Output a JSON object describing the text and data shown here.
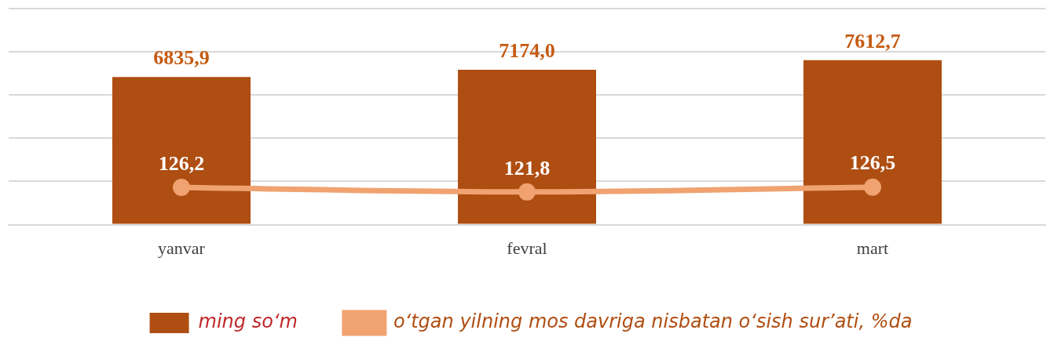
{
  "chart_data": {
    "type": "bar",
    "categories": [
      "yanvar",
      "fevral",
      "mart"
    ],
    "series": [
      {
        "name": "ming so‘m",
        "color": "#ae4e12",
        "values": [
          6835.9,
          7174.0,
          7612.7
        ],
        "value_labels": [
          "6835,9",
          "7174,0",
          "7612,7"
        ]
      },
      {
        "name": "o‘tgan yilning mos davriga nisbatan o‘sish sur’ati, %da",
        "type": "line",
        "axis": "y2",
        "color": "#f0a370",
        "values": [
          126.2,
          121.8,
          126.5
        ],
        "value_labels": [
          "126,2",
          "121,8",
          "126,5"
        ]
      }
    ],
    "ylim": [
      0,
      10000
    ],
    "yticks": [
      {
        "value": 0,
        "label": null
      },
      {
        "value": 2000,
        "label": null
      },
      {
        "value": 4000,
        "label": null
      },
      {
        "value": 6000,
        "label": null
      },
      {
        "value": 8000,
        "label": null
      },
      {
        "value": 10000,
        "label": null
      }
    ],
    "y2lim": [
      90,
      300
    ],
    "grid": "y",
    "tick_labels": "x",
    "legend": "bottom",
    "marker": "circle",
    "line_style": "solid"
  }
}
